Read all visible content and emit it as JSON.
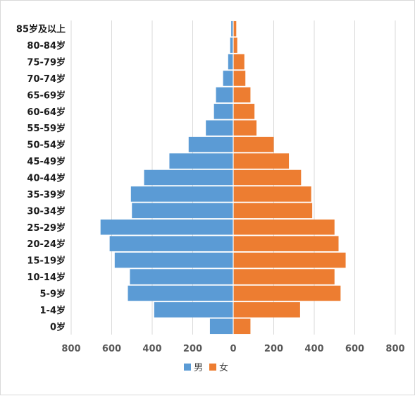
{
  "chart_data": {
    "type": "bar",
    "orientation": "horizontal",
    "categories": [
      "0岁",
      "1-4岁",
      "5-9岁",
      "10-14岁",
      "15-19岁",
      "20-24岁",
      "25-29岁",
      "30-34岁",
      "35-39岁",
      "40-44岁",
      "45-49岁",
      "50-54岁",
      "55-59岁",
      "60-64岁",
      "65-69岁",
      "70-74岁",
      "75-79岁",
      "80-84岁",
      "85岁及以上"
    ],
    "series": [
      {
        "name": "男",
        "color": "#5b9bd5",
        "values": [
          115,
          390,
          520,
          510,
          585,
          610,
          655,
          500,
          505,
          440,
          315,
          220,
          135,
          95,
          85,
          50,
          25,
          15,
          10
        ]
      },
      {
        "name": "女",
        "color": "#ed7d31",
        "values": [
          85,
          330,
          530,
          500,
          555,
          520,
          500,
          390,
          385,
          335,
          275,
          200,
          115,
          105,
          85,
          60,
          55,
          20,
          15
        ]
      }
    ],
    "x_ticks": [
      "800",
      "600",
      "400",
      "200",
      "0",
      "200",
      "400",
      "600",
      "800"
    ],
    "xlim": [
      -800,
      800
    ],
    "grid": true,
    "legend_position": "bottom"
  }
}
